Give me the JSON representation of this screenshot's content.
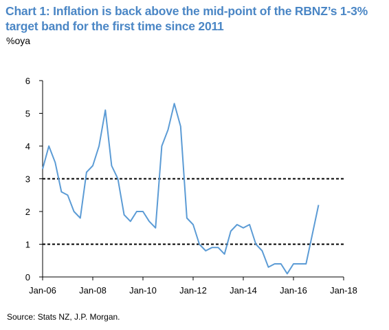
{
  "chart_data": {
    "type": "line",
    "title": "Chart 1: Inflation is back above the mid-point of the RBNZ’s 1-3% target band for the first time since 2011",
    "unit_label": "%oya",
    "source": "Source: Stats NZ, J.P. Morgan.",
    "xlim": [
      2006.0,
      2018.0
    ],
    "ylim": [
      0,
      6
    ],
    "y_ticks": [
      0,
      1,
      2,
      3,
      4,
      5,
      6
    ],
    "x_ticks": [
      {
        "label": "Jan-06",
        "value": 2006.0
      },
      {
        "label": "Jan-08",
        "value": 2008.0
      },
      {
        "label": "Jan-10",
        "value": 2010.0
      },
      {
        "label": "Jan-12",
        "value": 2012.0
      },
      {
        "label": "Jan-14",
        "value": 2014.0
      },
      {
        "label": "Jan-16",
        "value": 2016.0
      },
      {
        "label": "Jan-18",
        "value": 2018.0
      }
    ],
    "reference_lines": [
      1,
      3
    ],
    "line_color": "#5b9bd5",
    "series": [
      {
        "x": [
          2006.0,
          2006.25,
          2006.5,
          2006.75,
          2007.0,
          2007.25,
          2007.5,
          2007.75,
          2008.0,
          2008.25,
          2008.5,
          2008.75,
          2009.0,
          2009.25,
          2009.5,
          2009.75,
          2010.0,
          2010.25,
          2010.5,
          2010.75,
          2011.0,
          2011.25,
          2011.5,
          2011.75,
          2012.0,
          2012.25,
          2012.5,
          2012.75,
          2013.0,
          2013.25,
          2013.5,
          2013.75,
          2014.0,
          2014.25,
          2014.5,
          2014.75,
          2015.0,
          2015.25,
          2015.5,
          2015.75,
          2016.0,
          2016.25,
          2016.5,
          2016.75,
          2017.0
        ],
        "values": [
          3.3,
          4.0,
          3.5,
          2.6,
          2.5,
          2.0,
          1.8,
          3.2,
          3.4,
          4.0,
          5.1,
          3.4,
          3.0,
          1.9,
          1.7,
          2.0,
          2.0,
          1.7,
          1.5,
          4.0,
          4.5,
          5.3,
          4.6,
          1.8,
          1.6,
          1.0,
          0.8,
          0.9,
          0.9,
          0.7,
          1.4,
          1.6,
          1.5,
          1.6,
          1.0,
          0.8,
          0.3,
          0.4,
          0.4,
          0.1,
          0.4,
          0.4,
          0.4,
          1.3,
          2.2
        ]
      }
    ]
  }
}
